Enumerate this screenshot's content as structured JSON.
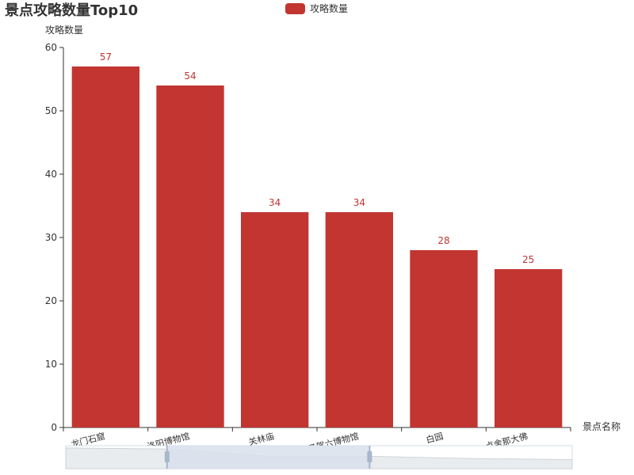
{
  "chart_data": {
    "type": "bar",
    "title": "景点攻略数量Top10",
    "xlabel": "景点名称",
    "ylabel": "攻略数量",
    "legend": {
      "entries": [
        "攻略数量"
      ],
      "placement": "top-center"
    },
    "grid": false,
    "ylim": [
      0,
      60
    ],
    "y_ticks": [
      0,
      10,
      20,
      30,
      40,
      50,
      60
    ],
    "categories": [
      "龙门石窟",
      "洛阳博物馆",
      "关林庙",
      "天子驾六博物馆",
      "白园",
      "卢舍那大佛"
    ],
    "series": [
      {
        "name": "攻略数量",
        "values": [
          57,
          54,
          34,
          34,
          28,
          25
        ],
        "color": "#c23531"
      }
    ],
    "data_labels": true,
    "datazoom": {
      "visible_range": [
        "洛阳博物馆",
        "天子驾六博物馆"
      ]
    }
  },
  "colors": {
    "bar": "#c23531",
    "axis": "#333333",
    "zoom_fill": "#d9e1ec",
    "zoom_border": "#d2dbee",
    "handle": "#a7b7cc"
  }
}
